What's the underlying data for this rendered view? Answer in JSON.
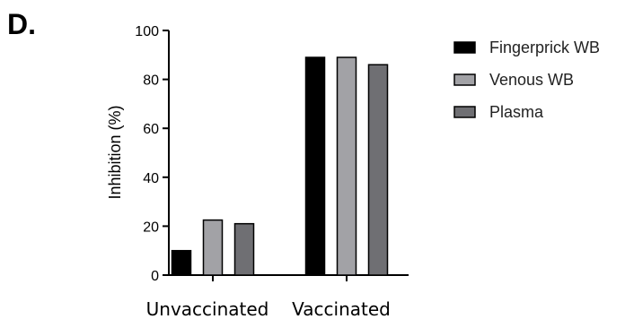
{
  "panel_label": "D.",
  "chart_data": {
    "type": "bar",
    "categories": [
      "Unvaccinated",
      "Vaccinated"
    ],
    "series": [
      {
        "name": "Fingerprick WB",
        "values": [
          10,
          89
        ],
        "color": "#000000"
      },
      {
        "name": "Venous WB",
        "values": [
          22.5,
          89
        ],
        "color": "#a2a2a6"
      },
      {
        "name": "Plasma",
        "values": [
          21,
          86
        ],
        "color": "#6f6f73"
      }
    ],
    "ylabel": "Inhibition (%)",
    "xlabel": "",
    "ylim": [
      0,
      100
    ],
    "yticks": [
      0,
      20,
      40,
      60,
      80,
      100
    ],
    "legend_position": "top-right",
    "grid": false
  }
}
